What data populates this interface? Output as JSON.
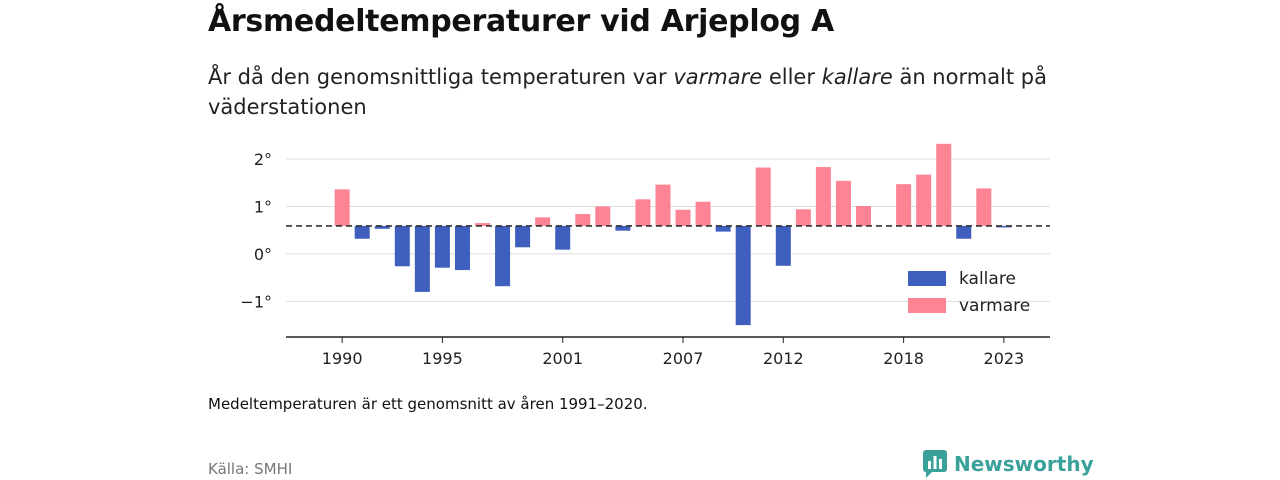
{
  "header": {
    "title": "Årsmedeltemperaturer vid Arjeplog A",
    "subtitle_part1": "År då den genomsnittliga temperaturen var ",
    "subtitle_em1": "varmare",
    "subtitle_part2": " eller ",
    "subtitle_em2": "kallare",
    "subtitle_part3": " än normalt på väderstationen"
  },
  "footer": {
    "note": "Medeltemperaturen är ett genomsnitt av åren 1991–2020.",
    "source": "Källa: SMHI",
    "brand": "Newsworthy"
  },
  "colors": {
    "colder": "#3f5fbf",
    "warmer": "#fd8494",
    "grid": "#dddddd",
    "axis": "#222222",
    "reference_line": "#333333",
    "brand": "#3aa19a"
  },
  "chart_data": {
    "type": "bar",
    "title": "Årsmedeltemperaturer vid Arjeplog A",
    "x": [
      1990,
      1991,
      1992,
      1993,
      1994,
      1995,
      1996,
      1997,
      1998,
      1999,
      2000,
      2001,
      2002,
      2003,
      2004,
      2005,
      2006,
      2007,
      2008,
      2009,
      2010,
      2011,
      2012,
      2013,
      2014,
      2015,
      2016,
      2017,
      2018,
      2019,
      2020,
      2021,
      2022,
      2023
    ],
    "values": [
      1.36,
      0.32,
      0.53,
      -0.26,
      -0.8,
      -0.29,
      -0.34,
      0.65,
      -0.68,
      0.14,
      0.77,
      0.09,
      0.84,
      1.0,
      0.49,
      1.15,
      1.46,
      0.93,
      1.1,
      0.47,
      -1.5,
      1.82,
      -0.25,
      0.94,
      1.83,
      1.54,
      1.01,
      null,
      1.47,
      1.67,
      2.32,
      0.32,
      1.38,
      0.57
    ],
    "normal": 0.59,
    "series": [
      {
        "name": "kallare",
        "color": "#3f5fbf"
      },
      {
        "name": "varmare",
        "color": "#fd8494"
      }
    ],
    "x_tick_labels": [
      "1990",
      "1995",
      "2001",
      "2007",
      "2012",
      "2018",
      "2023"
    ],
    "y_ticks": [
      2,
      1,
      0,
      -1
    ],
    "y_tick_labels": [
      "2°",
      "1°",
      "0°",
      "−1°"
    ],
    "ylim": [
      -1.75,
      2.4
    ],
    "xlim": [
      1987.2,
      2025.3
    ],
    "grid": true,
    "legend_position": "bottom-right"
  }
}
